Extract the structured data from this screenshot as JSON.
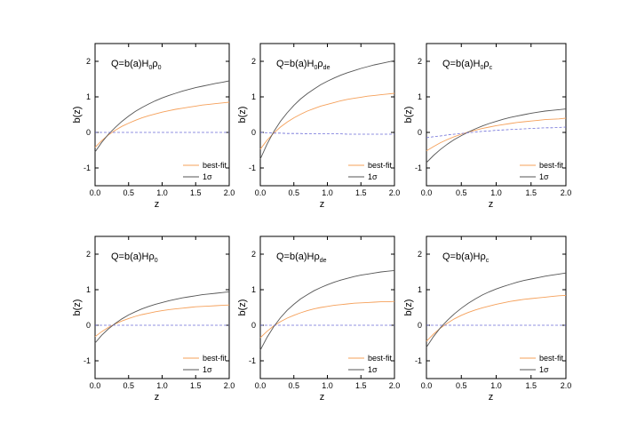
{
  "colors": {
    "best_fit": "#f5a05a",
    "one_sigma": "#555555",
    "band_ref": "#6f6fd8",
    "band_fill": "#c8c8ee"
  },
  "chart_data": [
    {
      "type": "line",
      "title": {
        "main": "Q=b(a)H",
        "sub1": "0",
        "rho": "ρ",
        "sub2": "0"
      },
      "xlabel": "z",
      "ylabel": "b(z)",
      "xlim": [
        0,
        2
      ],
      "ylim": [
        -1.5,
        2.5
      ],
      "xticks": [
        "0.0",
        "0.5",
        "1.0",
        "1.5",
        "2.0"
      ],
      "yticks": [
        "-1",
        "0",
        "1",
        "2"
      ],
      "legend": [
        "best-fit",
        "1σ"
      ],
      "legend_position": "bottom-right",
      "x": [
        0,
        0.1,
        0.2,
        0.3,
        0.4,
        0.5,
        0.6,
        0.7,
        0.8,
        0.9,
        1.0,
        1.1,
        1.2,
        1.3,
        1.4,
        1.5,
        1.6,
        1.7,
        1.8,
        1.9,
        2.0
      ],
      "series": [
        {
          "name": "best-fit",
          "style": "best-fit",
          "values": [
            -0.42,
            -0.23,
            -0.07,
            0.06,
            0.17,
            0.26,
            0.34,
            0.41,
            0.47,
            0.52,
            0.57,
            0.61,
            0.65,
            0.68,
            0.71,
            0.74,
            0.77,
            0.79,
            0.81,
            0.83,
            0.85
          ]
        },
        {
          "name": "1σ",
          "style": "one-sigma",
          "values": [
            -0.55,
            -0.28,
            -0.05,
            0.14,
            0.31,
            0.46,
            0.59,
            0.7,
            0.8,
            0.89,
            0.97,
            1.04,
            1.1,
            1.16,
            1.21,
            1.26,
            1.3,
            1.34,
            1.38,
            1.41,
            1.45
          ]
        },
        {
          "style": "reference",
          "values": [
            0.0,
            0.0,
            0.0,
            0.0,
            0.0,
            0.0,
            0.0,
            0.0,
            0.0,
            0.0,
            0.0,
            0.0,
            0.0,
            0.0,
            0.0,
            0.0,
            0.0,
            0.0,
            0.0,
            0.0,
            0.0
          ]
        }
      ]
    },
    {
      "type": "line",
      "title": {
        "main": "Q=b(a)H",
        "sub1": "0",
        "rho": "ρ",
        "sub2": "de"
      },
      "xlabel": "z",
      "ylabel": "b(z)",
      "xlim": [
        0,
        2
      ],
      "ylim": [
        -1.5,
        2.5
      ],
      "xticks": [
        "0.0",
        "0.5",
        "1.0",
        "1.5",
        "2.0"
      ],
      "yticks": [
        "-1",
        "0",
        "1",
        "2"
      ],
      "legend": [
        "best-fit",
        "1σ"
      ],
      "legend_position": "bottom-right",
      "x": [
        0,
        0.1,
        0.2,
        0.3,
        0.4,
        0.5,
        0.6,
        0.7,
        0.8,
        0.9,
        1.0,
        1.1,
        1.2,
        1.3,
        1.4,
        1.5,
        1.6,
        1.7,
        1.8,
        1.9,
        2.0
      ],
      "series": [
        {
          "name": "best-fit",
          "style": "best-fit",
          "values": [
            -0.47,
            -0.22,
            -0.02,
            0.15,
            0.29,
            0.41,
            0.51,
            0.6,
            0.67,
            0.74,
            0.79,
            0.84,
            0.89,
            0.93,
            0.96,
            0.99,
            1.02,
            1.04,
            1.06,
            1.08,
            1.1
          ]
        },
        {
          "name": "1σ",
          "style": "one-sigma",
          "values": [
            -0.75,
            -0.33,
            0.02,
            0.31,
            0.55,
            0.76,
            0.94,
            1.09,
            1.22,
            1.34,
            1.44,
            1.53,
            1.61,
            1.68,
            1.74,
            1.8,
            1.85,
            1.9,
            1.94,
            1.98,
            2.02
          ]
        },
        {
          "style": "reference",
          "values": [
            0.0,
            -0.01,
            -0.02,
            -0.02,
            -0.03,
            -0.03,
            -0.03,
            -0.04,
            -0.04,
            -0.04,
            -0.04,
            -0.04,
            -0.04,
            -0.05,
            -0.05,
            -0.05,
            -0.05,
            -0.05,
            -0.05,
            -0.05,
            -0.05
          ]
        }
      ]
    },
    {
      "type": "line",
      "title": {
        "main": "Q=b(a)H",
        "sub1": "0",
        "rho": "ρ",
        "sub2": "c"
      },
      "xlabel": "z",
      "ylabel": "b(z)",
      "xlim": [
        0,
        2
      ],
      "ylim": [
        -1.5,
        2.5
      ],
      "xticks": [
        "0.0",
        "0.5",
        "1.0",
        "1.5",
        "2.0"
      ],
      "yticks": [
        "-1",
        "0",
        "1",
        "2"
      ],
      "legend": [
        "best-fit",
        "1σ"
      ],
      "legend_position": "bottom-right",
      "x": [
        0,
        0.1,
        0.2,
        0.3,
        0.4,
        0.5,
        0.6,
        0.7,
        0.8,
        0.9,
        1.0,
        1.1,
        1.2,
        1.3,
        1.4,
        1.5,
        1.6,
        1.7,
        1.8,
        1.9,
        2.0
      ],
      "series": [
        {
          "name": "best-fit",
          "style": "best-fit",
          "values": [
            -0.52,
            -0.4,
            -0.29,
            -0.2,
            -0.12,
            -0.05,
            0.01,
            0.06,
            0.11,
            0.15,
            0.19,
            0.22,
            0.25,
            0.28,
            0.3,
            0.32,
            0.34,
            0.36,
            0.37,
            0.38,
            0.4
          ]
        },
        {
          "name": "1σ",
          "style": "one-sigma",
          "values": [
            -0.85,
            -0.65,
            -0.48,
            -0.33,
            -0.2,
            -0.09,
            0.01,
            0.1,
            0.18,
            0.25,
            0.31,
            0.37,
            0.42,
            0.46,
            0.5,
            0.54,
            0.57,
            0.6,
            0.62,
            0.64,
            0.66
          ]
        },
        {
          "style": "reference",
          "values": [
            -0.15,
            -0.12,
            -0.1,
            -0.07,
            -0.05,
            -0.03,
            -0.01,
            0.01,
            0.03,
            0.04,
            0.06,
            0.07,
            0.08,
            0.09,
            0.1,
            0.11,
            0.12,
            0.13,
            0.13,
            0.14,
            0.15
          ]
        }
      ]
    },
    {
      "type": "line",
      "title": {
        "main": "Q=b(a)H",
        "sub1": "",
        "rho": "ρ",
        "sub2": "0"
      },
      "xlabel": "z",
      "ylabel": "b(z)",
      "xlim": [
        0,
        2
      ],
      "ylim": [
        -1.5,
        2.5
      ],
      "xticks": [
        "0.0",
        "0.5",
        "1.0",
        "1.5",
        "2.0"
      ],
      "yticks": [
        "-1",
        "0",
        "1",
        "2"
      ],
      "legend": [
        "best-fit",
        "1σ"
      ],
      "legend_position": "bottom-right",
      "x": [
        0,
        0.1,
        0.2,
        0.3,
        0.4,
        0.5,
        0.6,
        0.7,
        0.8,
        0.9,
        1.0,
        1.1,
        1.2,
        1.3,
        1.4,
        1.5,
        1.6,
        1.7,
        1.8,
        1.9,
        2.0
      ],
      "series": [
        {
          "name": "best-fit",
          "style": "best-fit",
          "values": [
            -0.32,
            -0.18,
            -0.06,
            0.04,
            0.12,
            0.19,
            0.25,
            0.3,
            0.34,
            0.38,
            0.41,
            0.44,
            0.46,
            0.48,
            0.5,
            0.52,
            0.53,
            0.54,
            0.55,
            0.56,
            0.57
          ]
        },
        {
          "name": "1σ",
          "style": "one-sigma",
          "values": [
            -0.5,
            -0.28,
            -0.1,
            0.05,
            0.18,
            0.29,
            0.38,
            0.46,
            0.53,
            0.59,
            0.64,
            0.69,
            0.73,
            0.77,
            0.8,
            0.83,
            0.86,
            0.88,
            0.9,
            0.92,
            0.94
          ]
        },
        {
          "style": "reference",
          "values": [
            0.0,
            0.0,
            0.0,
            0.0,
            0.0,
            0.0,
            0.0,
            0.0,
            0.0,
            0.0,
            0.0,
            0.0,
            0.0,
            0.0,
            0.0,
            0.0,
            0.0,
            0.0,
            0.0,
            0.0,
            0.0
          ]
        }
      ]
    },
    {
      "type": "line",
      "title": {
        "main": "Q=b(a)H",
        "sub1": "",
        "rho": "ρ",
        "sub2": "de"
      },
      "xlabel": "z",
      "ylabel": "b(z)",
      "xlim": [
        0,
        2
      ],
      "ylim": [
        -1.5,
        2.5
      ],
      "xticks": [
        "0.0",
        "0.5",
        "1.0",
        "1.5",
        "2.0"
      ],
      "yticks": [
        "-1",
        "0",
        "1",
        "2"
      ],
      "legend": [
        "best-fit",
        "1σ"
      ],
      "legend_position": "bottom-right",
      "x": [
        0,
        0.1,
        0.2,
        0.3,
        0.4,
        0.5,
        0.6,
        0.7,
        0.8,
        0.9,
        1.0,
        1.1,
        1.2,
        1.3,
        1.4,
        1.5,
        1.6,
        1.7,
        1.8,
        1.9,
        2.0
      ],
      "series": [
        {
          "name": "best-fit",
          "style": "best-fit",
          "values": [
            -0.35,
            -0.17,
            -0.02,
            0.1,
            0.2,
            0.28,
            0.35,
            0.41,
            0.46,
            0.5,
            0.53,
            0.56,
            0.58,
            0.6,
            0.62,
            0.63,
            0.64,
            0.65,
            0.66,
            0.66,
            0.67
          ]
        },
        {
          "name": "1σ",
          "style": "one-sigma",
          "values": [
            -0.7,
            -0.34,
            -0.04,
            0.21,
            0.42,
            0.59,
            0.74,
            0.86,
            0.97,
            1.06,
            1.14,
            1.21,
            1.27,
            1.32,
            1.37,
            1.41,
            1.44,
            1.47,
            1.5,
            1.52,
            1.54
          ]
        },
        {
          "style": "reference",
          "values": [
            0.0,
            0.0,
            0.0,
            0.0,
            0.0,
            0.0,
            0.0,
            0.0,
            0.0,
            0.0,
            0.0,
            0.0,
            0.0,
            0.0,
            0.0,
            0.0,
            0.0,
            0.0,
            0.0,
            0.0,
            0.0
          ]
        }
      ]
    },
    {
      "type": "line",
      "title": {
        "main": "Q=b(a)H",
        "sub1": "",
        "rho": "ρ",
        "sub2": "c"
      },
      "xlabel": "z",
      "ylabel": "b(z)",
      "xlim": [
        0,
        2
      ],
      "ylim": [
        -1.5,
        2.5
      ],
      "xticks": [
        "0.0",
        "0.5",
        "1.0",
        "1.5",
        "2.0"
      ],
      "yticks": [
        "-1",
        "0",
        "1",
        "2"
      ],
      "legend": [
        "best-fit",
        "1σ"
      ],
      "legend_position": "bottom-right",
      "x": [
        0,
        0.1,
        0.2,
        0.3,
        0.4,
        0.5,
        0.6,
        0.7,
        0.8,
        0.9,
        1.0,
        1.1,
        1.2,
        1.3,
        1.4,
        1.5,
        1.6,
        1.7,
        1.8,
        1.9,
        2.0
      ],
      "series": [
        {
          "name": "best-fit",
          "style": "best-fit",
          "values": [
            -0.45,
            -0.25,
            -0.08,
            0.06,
            0.18,
            0.28,
            0.36,
            0.43,
            0.49,
            0.54,
            0.59,
            0.63,
            0.67,
            0.7,
            0.73,
            0.75,
            0.77,
            0.79,
            0.81,
            0.83,
            0.84
          ]
        },
        {
          "name": "1σ",
          "style": "one-sigma",
          "values": [
            -0.62,
            -0.32,
            -0.07,
            0.14,
            0.32,
            0.48,
            0.62,
            0.74,
            0.85,
            0.94,
            1.02,
            1.09,
            1.15,
            1.21,
            1.26,
            1.3,
            1.34,
            1.38,
            1.41,
            1.44,
            1.47
          ]
        },
        {
          "style": "reference",
          "values": [
            0.0,
            0.0,
            0.0,
            0.0,
            0.0,
            0.0,
            0.0,
            0.0,
            0.0,
            0.0,
            0.0,
            0.0,
            0.0,
            0.0,
            0.0,
            0.0,
            0.0,
            0.0,
            0.0,
            0.0,
            0.0
          ]
        }
      ]
    }
  ]
}
